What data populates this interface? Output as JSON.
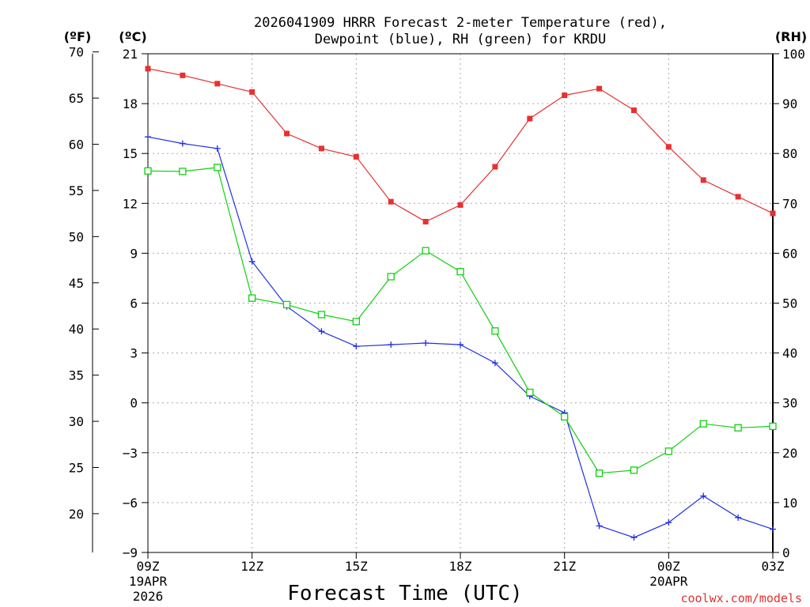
{
  "colors": {
    "temperature": "#e83030",
    "dewpoint": "#2030e0",
    "rh": "#10d010",
    "grid": "#a8a8a8",
    "credit": "#e03030"
  },
  "chart_data": {
    "type": "line",
    "title_line1": "2026041909 HRRR Forecast 2-meter Temperature (red),",
    "title_line2": "Dewpoint (blue), RH (green) for KRDU",
    "xlabel": "Forecast Time (UTC)",
    "credit": "coolwx.com/models",
    "left_unit": "(ºF)",
    "celsius_unit": "(ºC)",
    "right_unit": "(RH)",
    "x_hours": [
      0,
      1,
      2,
      3,
      4,
      5,
      6,
      7,
      8,
      9,
      10,
      11,
      12,
      13,
      14,
      15,
      16,
      17,
      18
    ],
    "x_ticks": [
      {
        "hour": 0,
        "label": "09Z",
        "sub1": "19APR",
        "sub2": "2026"
      },
      {
        "hour": 3,
        "label": "12Z"
      },
      {
        "hour": 6,
        "label": "15Z"
      },
      {
        "hour": 9,
        "label": "18Z"
      },
      {
        "hour": 12,
        "label": "21Z"
      },
      {
        "hour": 15,
        "label": "00Z",
        "sub1": "20APR"
      },
      {
        "hour": 18,
        "label": "03Z"
      }
    ],
    "celsius_axis": {
      "min": -9,
      "max": 21,
      "ticks": [
        "21",
        "18",
        "15",
        "12",
        "9",
        "6",
        "3",
        "0",
        "−3",
        "−6",
        "−9"
      ]
    },
    "fahrenheit_axis": {
      "ticks": [
        "70",
        "65",
        "60",
        "55",
        "50",
        "45",
        "40",
        "35",
        "30",
        "25",
        "20"
      ]
    },
    "rh_axis": {
      "min": 0,
      "max": 100,
      "ticks": [
        "100",
        "90",
        "80",
        "70",
        "60",
        "50",
        "40",
        "30",
        "20",
        "10",
        "0"
      ]
    },
    "series": [
      {
        "name": "Temperature",
        "unit": "C",
        "marker": "square-filled",
        "values": [
          20.1,
          19.7,
          19.2,
          18.7,
          16.2,
          15.3,
          14.8,
          12.1,
          10.9,
          11.9,
          14.2,
          17.1,
          18.5,
          18.9,
          17.6,
          15.4,
          13.4,
          12.4,
          11.4
        ]
      },
      {
        "name": "Dewpoint",
        "unit": "C",
        "marker": "plus",
        "values": [
          16.0,
          15.6,
          15.3,
          8.5,
          5.8,
          4.3,
          3.4,
          3.5,
          3.6,
          3.5,
          2.4,
          0.4,
          -0.6,
          -7.4,
          -8.1,
          -7.2,
          -5.6,
          -6.9,
          -7.6
        ]
      },
      {
        "name": "RH",
        "unit": "%",
        "marker": "square-open",
        "values": [
          76.5,
          76.4,
          77.2,
          51.0,
          49.7,
          47.7,
          46.3,
          55.3,
          60.5,
          56.3,
          44.4,
          32.1,
          27.2,
          15.9,
          16.5,
          20.3,
          25.8,
          25.0,
          25.3
        ]
      }
    ]
  }
}
